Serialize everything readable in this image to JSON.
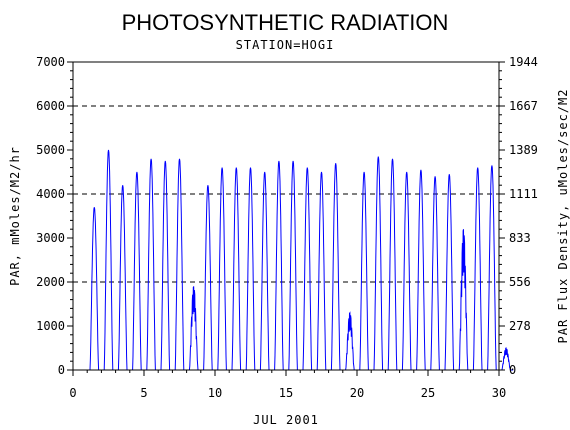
{
  "chart_data": {
    "type": "line",
    "title": "PHOTOSYNTHETIC RADIATION",
    "subtitle": "STATION=HOGI",
    "xlabel": "JUL 2001",
    "ylabel": "PAR, mMoles/M2/hr",
    "y2label": "PAR Flux Density, uMoles/sec/M2",
    "xlim": [
      0,
      30
    ],
    "ylim": [
      0,
      7000
    ],
    "x_ticks": [
      0,
      5,
      10,
      15,
      20,
      25,
      30
    ],
    "y_ticks": [
      0,
      1000,
      2000,
      3000,
      4000,
      5000,
      6000,
      7000
    ],
    "y2_ticks": [
      "0",
      "278",
      "556",
      "833",
      "1111",
      "1389",
      "1667",
      "1944"
    ],
    "grid": "dashed horizontal lines at 2000, 4000, 6000",
    "line_color": "#0000ff",
    "series": [
      {
        "daily_peaks": [
          {
            "day": 1,
            "peak": 3700
          },
          {
            "day": 2,
            "peak": 5000
          },
          {
            "day": 3,
            "peak": 4200
          },
          {
            "day": 4,
            "peak": 4500
          },
          {
            "day": 5,
            "peak": 4800
          },
          {
            "day": 6,
            "peak": 4750
          },
          {
            "day": 7,
            "peak": 4800
          },
          {
            "day": 8,
            "peak": 1900
          },
          {
            "day": 9,
            "peak": 4200
          },
          {
            "day": 10,
            "peak": 4600
          },
          {
            "day": 11,
            "peak": 4600
          },
          {
            "day": 12,
            "peak": 4600
          },
          {
            "day": 13,
            "peak": 4500
          },
          {
            "day": 14,
            "peak": 4750
          },
          {
            "day": 15,
            "peak": 4750
          },
          {
            "day": 16,
            "peak": 4600
          },
          {
            "day": 17,
            "peak": 4500
          },
          {
            "day": 18,
            "peak": 4700
          },
          {
            "day": 19,
            "peak": 1300
          },
          {
            "day": 20,
            "peak": 4500
          },
          {
            "day": 21,
            "peak": 4850
          },
          {
            "day": 22,
            "peak": 4800
          },
          {
            "day": 23,
            "peak": 4500
          },
          {
            "day": 24,
            "peak": 4550
          },
          {
            "day": 25,
            "peak": 4400
          },
          {
            "day": 26,
            "peak": 4450
          },
          {
            "day": 27,
            "peak": 3200
          },
          {
            "day": 28,
            "peak": 4600
          },
          {
            "day": 29,
            "peak": 4650
          },
          {
            "day": 30,
            "peak": 500
          }
        ]
      }
    ]
  }
}
